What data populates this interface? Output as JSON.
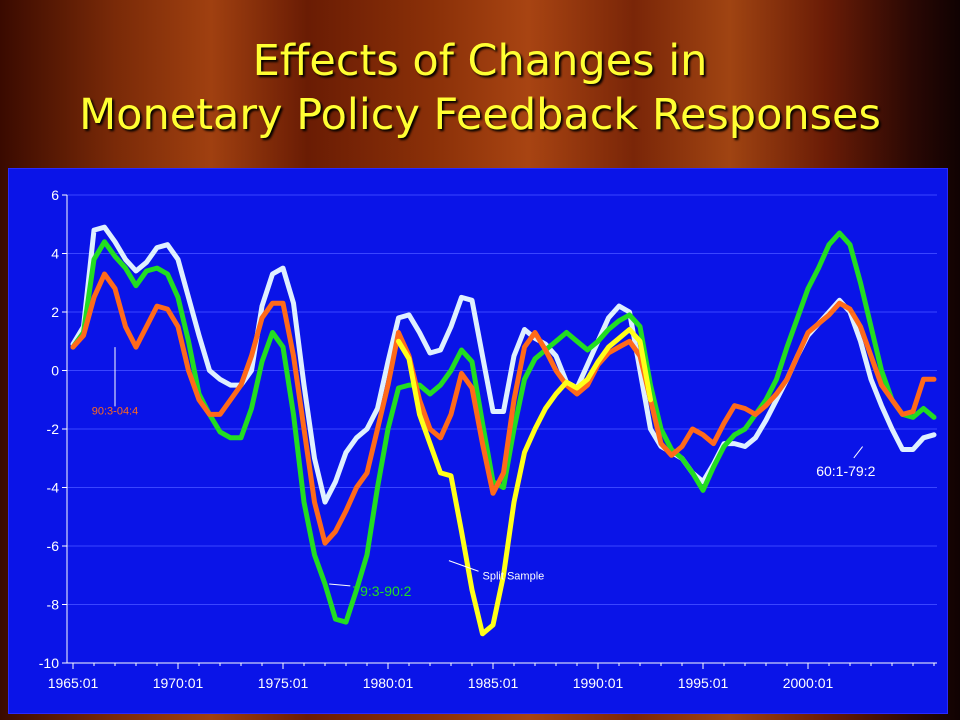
{
  "slide": {
    "title_line1": "Effects of Changes in",
    "title_line2": "Monetary Policy Feedback Responses"
  },
  "colors": {
    "background_panel": "#0a14e8",
    "title": "#ffff33",
    "series_60_79": "#dff0ff",
    "series_79_90": "#22dd22",
    "series_90_04": "#ff6a1a",
    "series_split": "#ffff1a"
  },
  "chart_data": {
    "type": "line",
    "title": "",
    "xlabel": "",
    "ylabel": "",
    "xlim": [
      1965.0,
      2005.0
    ],
    "ylim": [
      -10,
      6
    ],
    "y_ticks": [
      6,
      4,
      2,
      0,
      -2,
      -4,
      -6,
      -8,
      -10
    ],
    "y_tick_labels": [
      "6",
      "4",
      "2",
      "0",
      "-2",
      "-4",
      "-6",
      "-8",
      "-10"
    ],
    "x_ticks": [
      1965,
      1970,
      1975,
      1980,
      1985,
      1990,
      1995,
      2000
    ],
    "x_tick_labels": [
      "1965:01",
      "1970:01",
      "1975:01",
      "1980:01",
      "1985:01",
      "1990:01",
      "1995:01",
      "2000:01"
    ],
    "grid": "horizontal",
    "legend": "none",
    "annotations": [
      {
        "text": "90:3-04:4",
        "series": "90:3-04:4",
        "point_x": 1967.0,
        "point_y": 0.8,
        "label_x": 1967.0,
        "label_y": -1.5
      },
      {
        "text": "60:1-79:2",
        "series": "60:1-79:2",
        "point_x": 2002.6,
        "point_y": -2.6,
        "label_x": 2001.8,
        "label_y": -3.4
      },
      {
        "text": "79:3-90:2",
        "series": "79:3-90:2",
        "point_x": 1977.2,
        "point_y": -7.3,
        "label_x": 1978.3,
        "label_y": -7.5
      },
      {
        "text": "Split Sample",
        "series": "Split Sample",
        "point_x": 1982.9,
        "point_y": -6.5,
        "label_x": 1984.5,
        "label_y": -7.0
      }
    ],
    "series": [
      {
        "name": "60:1-79:2",
        "color": "#dff0ff",
        "points": [
          [
            1965.0,
            0.9
          ],
          [
            1965.5,
            1.5
          ],
          [
            1966.0,
            4.8
          ],
          [
            1966.5,
            4.9
          ],
          [
            1967.0,
            4.4
          ],
          [
            1967.5,
            3.8
          ],
          [
            1968.0,
            3.4
          ],
          [
            1968.5,
            3.7
          ],
          [
            1969.0,
            4.2
          ],
          [
            1969.5,
            4.3
          ],
          [
            1970.0,
            3.8
          ],
          [
            1970.5,
            2.5
          ],
          [
            1971.0,
            1.2
          ],
          [
            1971.5,
            0.0
          ],
          [
            1972.0,
            -0.3
          ],
          [
            1972.5,
            -0.5
          ],
          [
            1973.0,
            -0.5
          ],
          [
            1973.5,
            0.0
          ],
          [
            1974.0,
            2.2
          ],
          [
            1974.5,
            3.3
          ],
          [
            1975.0,
            3.5
          ],
          [
            1975.5,
            2.3
          ],
          [
            1976.0,
            -0.5
          ],
          [
            1976.5,
            -3.0
          ],
          [
            1977.0,
            -4.5
          ],
          [
            1977.5,
            -3.8
          ],
          [
            1978.0,
            -2.8
          ],
          [
            1978.5,
            -2.3
          ],
          [
            1979.0,
            -2.0
          ],
          [
            1979.5,
            -1.3
          ],
          [
            1980.0,
            0.3
          ],
          [
            1980.5,
            1.8
          ],
          [
            1981.0,
            1.9
          ],
          [
            1981.5,
            1.3
          ],
          [
            1982.0,
            0.6
          ],
          [
            1982.5,
            0.7
          ],
          [
            1983.0,
            1.5
          ],
          [
            1983.5,
            2.5
          ],
          [
            1984.0,
            2.4
          ],
          [
            1984.5,
            0.5
          ],
          [
            1985.0,
            -1.4
          ],
          [
            1985.5,
            -1.4
          ],
          [
            1986.0,
            0.5
          ],
          [
            1986.5,
            1.4
          ],
          [
            1987.0,
            1.1
          ],
          [
            1987.5,
            0.9
          ],
          [
            1988.0,
            0.5
          ],
          [
            1988.5,
            -0.4
          ],
          [
            1989.0,
            -0.6
          ],
          [
            1989.5,
            0.2
          ],
          [
            1990.0,
            1.0
          ],
          [
            1990.5,
            1.8
          ],
          [
            1991.0,
            2.2
          ],
          [
            1991.5,
            2.0
          ],
          [
            1992.0,
            0.0
          ],
          [
            1992.5,
            -2.0
          ],
          [
            1993.0,
            -2.6
          ],
          [
            1993.5,
            -2.8
          ],
          [
            1994.0,
            -3.0
          ],
          [
            1994.5,
            -3.5
          ],
          [
            1995.0,
            -3.8
          ],
          [
            1995.5,
            -3.2
          ],
          [
            1996.0,
            -2.5
          ],
          [
            1996.5,
            -2.5
          ],
          [
            1997.0,
            -2.6
          ],
          [
            1997.5,
            -2.3
          ],
          [
            1998.0,
            -1.7
          ],
          [
            1998.5,
            -1.0
          ],
          [
            1999.0,
            -0.3
          ],
          [
            1999.5,
            0.5
          ],
          [
            2000.0,
            1.2
          ],
          [
            2000.5,
            1.6
          ],
          [
            2001.0,
            2.0
          ],
          [
            2001.5,
            2.4
          ],
          [
            2002.0,
            2.0
          ],
          [
            2002.5,
            1.0
          ],
          [
            2003.0,
            -0.3
          ],
          [
            2003.5,
            -1.2
          ],
          [
            2004.0,
            -2.0
          ],
          [
            2004.5,
            -2.7
          ],
          [
            2005.0,
            -2.7
          ],
          [
            2005.5,
            -2.3
          ],
          [
            2006.0,
            -2.2
          ]
        ]
      },
      {
        "name": "79:3-90:2",
        "color": "#22dd22",
        "points": [
          [
            1965.0,
            0.8
          ],
          [
            1965.5,
            1.3
          ],
          [
            1966.0,
            3.8
          ],
          [
            1966.5,
            4.4
          ],
          [
            1967.0,
            3.9
          ],
          [
            1967.5,
            3.5
          ],
          [
            1968.0,
            2.9
          ],
          [
            1968.5,
            3.4
          ],
          [
            1969.0,
            3.5
          ],
          [
            1969.5,
            3.3
          ],
          [
            1970.0,
            2.5
          ],
          [
            1970.5,
            1.0
          ],
          [
            1971.0,
            -0.8
          ],
          [
            1971.5,
            -1.5
          ],
          [
            1972.0,
            -2.1
          ],
          [
            1972.5,
            -2.3
          ],
          [
            1973.0,
            -2.3
          ],
          [
            1973.5,
            -1.3
          ],
          [
            1974.0,
            0.3
          ],
          [
            1974.5,
            1.3
          ],
          [
            1975.0,
            0.8
          ],
          [
            1975.5,
            -1.5
          ],
          [
            1976.0,
            -4.5
          ],
          [
            1976.5,
            -6.3
          ],
          [
            1977.0,
            -7.3
          ],
          [
            1977.5,
            -8.5
          ],
          [
            1978.0,
            -8.6
          ],
          [
            1978.5,
            -7.5
          ],
          [
            1979.0,
            -6.3
          ],
          [
            1979.5,
            -4.0
          ],
          [
            1980.0,
            -2.0
          ],
          [
            1980.5,
            -0.6
          ],
          [
            1981.0,
            -0.5
          ],
          [
            1981.5,
            -0.5
          ],
          [
            1982.0,
            -0.8
          ],
          [
            1982.5,
            -0.5
          ],
          [
            1983.0,
            0.0
          ],
          [
            1983.5,
            0.7
          ],
          [
            1984.0,
            0.3
          ],
          [
            1984.5,
            -1.8
          ],
          [
            1985.0,
            -3.8
          ],
          [
            1985.5,
            -4.0
          ],
          [
            1986.0,
            -2.0
          ],
          [
            1986.5,
            -0.3
          ],
          [
            1987.0,
            0.4
          ],
          [
            1987.5,
            0.7
          ],
          [
            1988.0,
            1.0
          ],
          [
            1988.5,
            1.3
          ],
          [
            1989.0,
            1.0
          ],
          [
            1989.5,
            0.7
          ],
          [
            1990.0,
            1.0
          ],
          [
            1990.5,
            1.4
          ],
          [
            1991.0,
            1.7
          ],
          [
            1991.5,
            1.9
          ],
          [
            1992.0,
            1.5
          ],
          [
            1992.5,
            -0.5
          ],
          [
            1993.0,
            -2.0
          ],
          [
            1993.5,
            -2.7
          ],
          [
            1994.0,
            -3.0
          ],
          [
            1994.5,
            -3.5
          ],
          [
            1995.0,
            -4.1
          ],
          [
            1995.5,
            -3.3
          ],
          [
            1996.0,
            -2.6
          ],
          [
            1996.5,
            -2.2
          ],
          [
            1997.0,
            -2.0
          ],
          [
            1997.5,
            -1.5
          ],
          [
            1998.0,
            -1.0
          ],
          [
            1998.5,
            -0.3
          ],
          [
            1999.0,
            0.8
          ],
          [
            1999.5,
            1.8
          ],
          [
            2000.0,
            2.8
          ],
          [
            2000.5,
            3.5
          ],
          [
            2001.0,
            4.3
          ],
          [
            2001.5,
            4.7
          ],
          [
            2002.0,
            4.3
          ],
          [
            2002.5,
            3.0
          ],
          [
            2003.0,
            1.5
          ],
          [
            2003.5,
            0.0
          ],
          [
            2004.0,
            -1.0
          ],
          [
            2004.5,
            -1.5
          ],
          [
            2005.0,
            -1.6
          ],
          [
            2005.5,
            -1.3
          ],
          [
            2006.0,
            -1.6
          ]
        ]
      },
      {
        "name": "90:3-04:4",
        "color": "#ff6a1a",
        "points": [
          [
            1965.0,
            0.8
          ],
          [
            1965.5,
            1.2
          ],
          [
            1966.0,
            2.5
          ],
          [
            1966.5,
            3.3
          ],
          [
            1967.0,
            2.8
          ],
          [
            1967.5,
            1.5
          ],
          [
            1968.0,
            0.8
          ],
          [
            1968.5,
            1.5
          ],
          [
            1969.0,
            2.2
          ],
          [
            1969.5,
            2.1
          ],
          [
            1970.0,
            1.5
          ],
          [
            1970.5,
            0.0
          ],
          [
            1971.0,
            -1.0
          ],
          [
            1971.5,
            -1.5
          ],
          [
            1972.0,
            -1.5
          ],
          [
            1972.5,
            -1.0
          ],
          [
            1973.0,
            -0.5
          ],
          [
            1973.5,
            0.5
          ],
          [
            1974.0,
            1.8
          ],
          [
            1974.5,
            2.3
          ],
          [
            1975.0,
            2.3
          ],
          [
            1975.5,
            0.5
          ],
          [
            1976.0,
            -2.0
          ],
          [
            1976.5,
            -4.5
          ],
          [
            1977.0,
            -5.9
          ],
          [
            1977.5,
            -5.5
          ],
          [
            1978.0,
            -4.8
          ],
          [
            1978.5,
            -4.0
          ],
          [
            1979.0,
            -3.5
          ],
          [
            1979.5,
            -2.0
          ],
          [
            1980.0,
            -0.5
          ],
          [
            1980.5,
            1.3
          ],
          [
            1981.0,
            0.5
          ],
          [
            1981.5,
            -1.0
          ],
          [
            1982.0,
            -2.0
          ],
          [
            1982.5,
            -2.3
          ],
          [
            1983.0,
            -1.5
          ],
          [
            1983.5,
            -0.1
          ],
          [
            1984.0,
            -0.6
          ],
          [
            1984.5,
            -2.5
          ],
          [
            1985.0,
            -4.2
          ],
          [
            1985.5,
            -3.5
          ],
          [
            1986.0,
            -1.0
          ],
          [
            1986.5,
            0.8
          ],
          [
            1987.0,
            1.3
          ],
          [
            1987.5,
            0.7
          ],
          [
            1988.0,
            0.0
          ],
          [
            1988.5,
            -0.5
          ],
          [
            1989.0,
            -0.8
          ],
          [
            1989.5,
            -0.5
          ],
          [
            1990.0,
            0.2
          ],
          [
            1990.5,
            0.6
          ],
          [
            1991.0,
            0.8
          ],
          [
            1991.5,
            1.0
          ],
          [
            1992.0,
            0.5
          ],
          [
            1992.5,
            -1.0
          ],
          [
            1993.0,
            -2.5
          ],
          [
            1993.5,
            -2.9
          ],
          [
            1994.0,
            -2.6
          ],
          [
            1994.5,
            -2.0
          ],
          [
            1995.0,
            -2.2
          ],
          [
            1995.5,
            -2.5
          ],
          [
            1996.0,
            -1.8
          ],
          [
            1996.5,
            -1.2
          ],
          [
            1997.0,
            -1.3
          ],
          [
            1997.5,
            -1.5
          ],
          [
            1998.0,
            -1.2
          ],
          [
            1998.5,
            -0.8
          ],
          [
            1999.0,
            -0.3
          ],
          [
            1999.5,
            0.5
          ],
          [
            2000.0,
            1.3
          ],
          [
            2000.5,
            1.6
          ],
          [
            2001.0,
            1.9
          ],
          [
            2001.5,
            2.3
          ],
          [
            2002.0,
            2.1
          ],
          [
            2002.5,
            1.5
          ],
          [
            2003.0,
            0.5
          ],
          [
            2003.5,
            -0.5
          ],
          [
            2004.0,
            -1.0
          ],
          [
            2004.5,
            -1.5
          ],
          [
            2005.0,
            -1.4
          ],
          [
            2005.5,
            -0.3
          ],
          [
            2006.0,
            -0.3
          ]
        ]
      },
      {
        "name": "Split Sample",
        "color": "#ffff1a",
        "points": [
          [
            1980.5,
            1.0
          ],
          [
            1981.0,
            0.4
          ],
          [
            1981.5,
            -1.5
          ],
          [
            1982.0,
            -2.5
          ],
          [
            1982.5,
            -3.5
          ],
          [
            1983.0,
            -3.6
          ],
          [
            1983.5,
            -5.5
          ],
          [
            1984.0,
            -7.5
          ],
          [
            1984.5,
            -9.0
          ],
          [
            1985.0,
            -8.7
          ],
          [
            1985.5,
            -7.0
          ],
          [
            1986.0,
            -4.5
          ],
          [
            1986.5,
            -2.8
          ],
          [
            1987.0,
            -2.0
          ],
          [
            1987.5,
            -1.3
          ],
          [
            1988.0,
            -0.8
          ],
          [
            1988.5,
            -0.4
          ],
          [
            1989.0,
            -0.6
          ],
          [
            1989.5,
            -0.3
          ],
          [
            1990.0,
            0.3
          ],
          [
            1990.5,
            0.8
          ],
          [
            1991.0,
            1.1
          ],
          [
            1991.5,
            1.4
          ],
          [
            1992.0,
            1.0
          ],
          [
            1992.5,
            -1.0
          ]
        ]
      }
    ]
  }
}
